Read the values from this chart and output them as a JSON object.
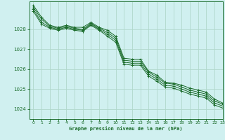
{
  "background_color": "#d0f0f0",
  "grid_color": "#b0d8cc",
  "line_color": "#1a6b2a",
  "marker_color": "#1a6b2a",
  "xlabel": "Graphe pression niveau de la mer (hPa)",
  "xlim": [
    -0.5,
    23
  ],
  "ylim": [
    1023.5,
    1029.4
  ],
  "yticks": [
    1024,
    1025,
    1026,
    1027,
    1028
  ],
  "xticks": [
    0,
    1,
    2,
    3,
    4,
    5,
    6,
    7,
    8,
    9,
    10,
    11,
    12,
    13,
    14,
    15,
    16,
    17,
    18,
    19,
    20,
    21,
    22,
    23
  ],
  "series": [
    [
      1029.2,
      1028.6,
      1028.2,
      1028.1,
      1028.2,
      1028.1,
      1028.1,
      1028.35,
      1028.1,
      1027.95,
      1027.65,
      1026.55,
      1026.5,
      1026.5,
      1025.9,
      1025.7,
      1025.35,
      1025.3,
      1025.2,
      1025.05,
      1024.95,
      1024.85,
      1024.5,
      1024.3
    ],
    [
      1029.1,
      1028.5,
      1028.15,
      1028.05,
      1028.15,
      1028.05,
      1028.0,
      1028.3,
      1028.05,
      1027.85,
      1027.55,
      1026.45,
      1026.4,
      1026.4,
      1025.85,
      1025.6,
      1025.3,
      1025.25,
      1025.1,
      1024.95,
      1024.85,
      1024.75,
      1024.4,
      1024.25
    ],
    [
      1029.0,
      1028.35,
      1028.1,
      1028.0,
      1028.1,
      1028.0,
      1027.95,
      1028.25,
      1028.0,
      1027.75,
      1027.45,
      1026.35,
      1026.3,
      1026.3,
      1025.75,
      1025.5,
      1025.2,
      1025.15,
      1025.0,
      1024.85,
      1024.75,
      1024.65,
      1024.3,
      1024.15
    ],
    [
      1028.9,
      1028.25,
      1028.05,
      1027.95,
      1028.05,
      1027.95,
      1027.9,
      1028.2,
      1027.95,
      1027.65,
      1027.35,
      1026.25,
      1026.2,
      1026.2,
      1025.65,
      1025.4,
      1025.1,
      1025.05,
      1024.9,
      1024.75,
      1024.65,
      1024.55,
      1024.2,
      1024.05
    ]
  ]
}
